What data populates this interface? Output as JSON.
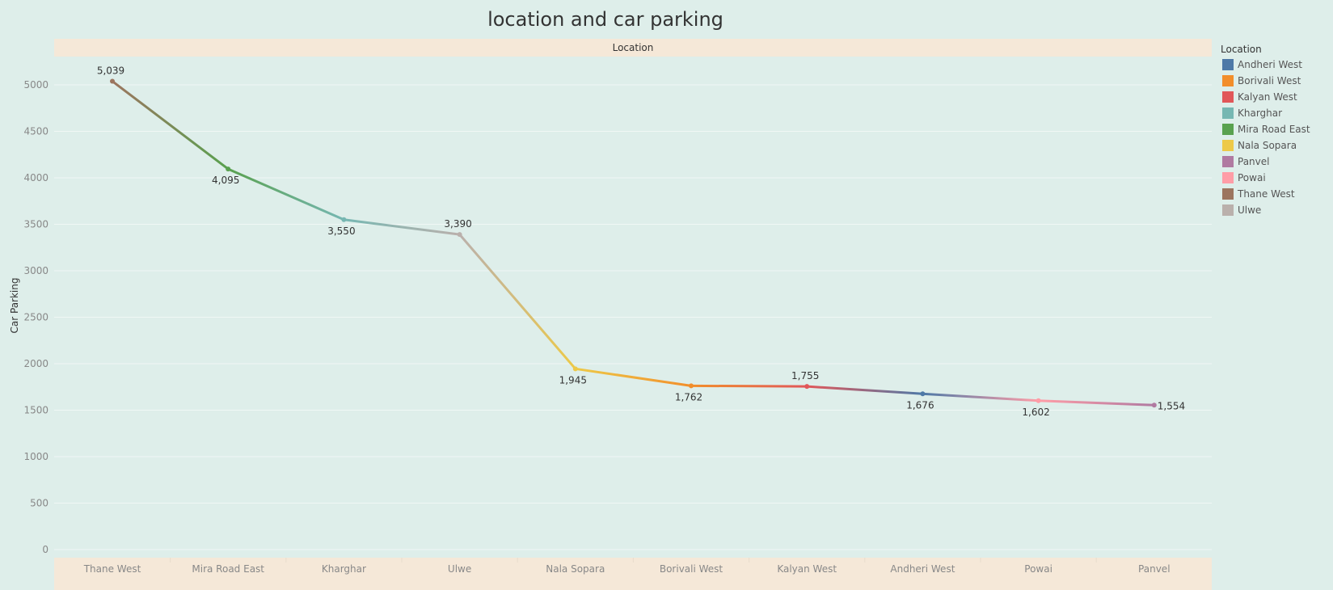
{
  "chart_data": {
    "type": "line",
    "title": "location and car parking",
    "column_header": "Location",
    "ylabel": "Car Parking",
    "ylim": [
      0,
      5300
    ],
    "yticks": [
      0,
      500,
      1000,
      1500,
      2000,
      2500,
      3000,
      3500,
      4000,
      4500,
      5000
    ],
    "grid": true,
    "categories": [
      "Thane West",
      "Mira Road East",
      "Kharghar",
      "Ulwe",
      "Nala Sopara",
      "Borivali West",
      "Kalyan West",
      "Andheri West",
      "Powai",
      "Panvel"
    ],
    "values": [
      5039,
      4095,
      3550,
      3390,
      1945,
      1762,
      1755,
      1676,
      1602,
      1554
    ],
    "data_labels": [
      "5,039",
      "4,095",
      "3,550",
      "3,390",
      "1,945",
      "1,762",
      "1,755",
      "1,676",
      "1,602",
      "1,554"
    ],
    "label_position": [
      "above",
      "below",
      "below",
      "above",
      "below",
      "below",
      "above",
      "below",
      "below",
      "right"
    ],
    "legend": {
      "title": "Location",
      "position": "right",
      "items": [
        {
          "label": "Andheri West",
          "color": "#4e79a7"
        },
        {
          "label": "Borivali West",
          "color": "#f28e2b"
        },
        {
          "label": "Kalyan West",
          "color": "#e15759"
        },
        {
          "label": "Kharghar",
          "color": "#76b7b2"
        },
        {
          "label": "Mira Road East",
          "color": "#59a14f"
        },
        {
          "label": "Nala Sopara",
          "color": "#edc948"
        },
        {
          "label": "Panvel",
          "color": "#b07aa1"
        },
        {
          "label": "Powai",
          "color": "#ff9da7"
        },
        {
          "label": "Thane West",
          "color": "#9c755f"
        },
        {
          "label": "Ulwe",
          "color": "#bab0ac"
        }
      ]
    },
    "colors": {
      "background": "#deeeea",
      "header_band": "#f5e8d8",
      "gridline": "#f0f7f5",
      "tick_text": "#888888",
      "text": "#333333"
    }
  }
}
